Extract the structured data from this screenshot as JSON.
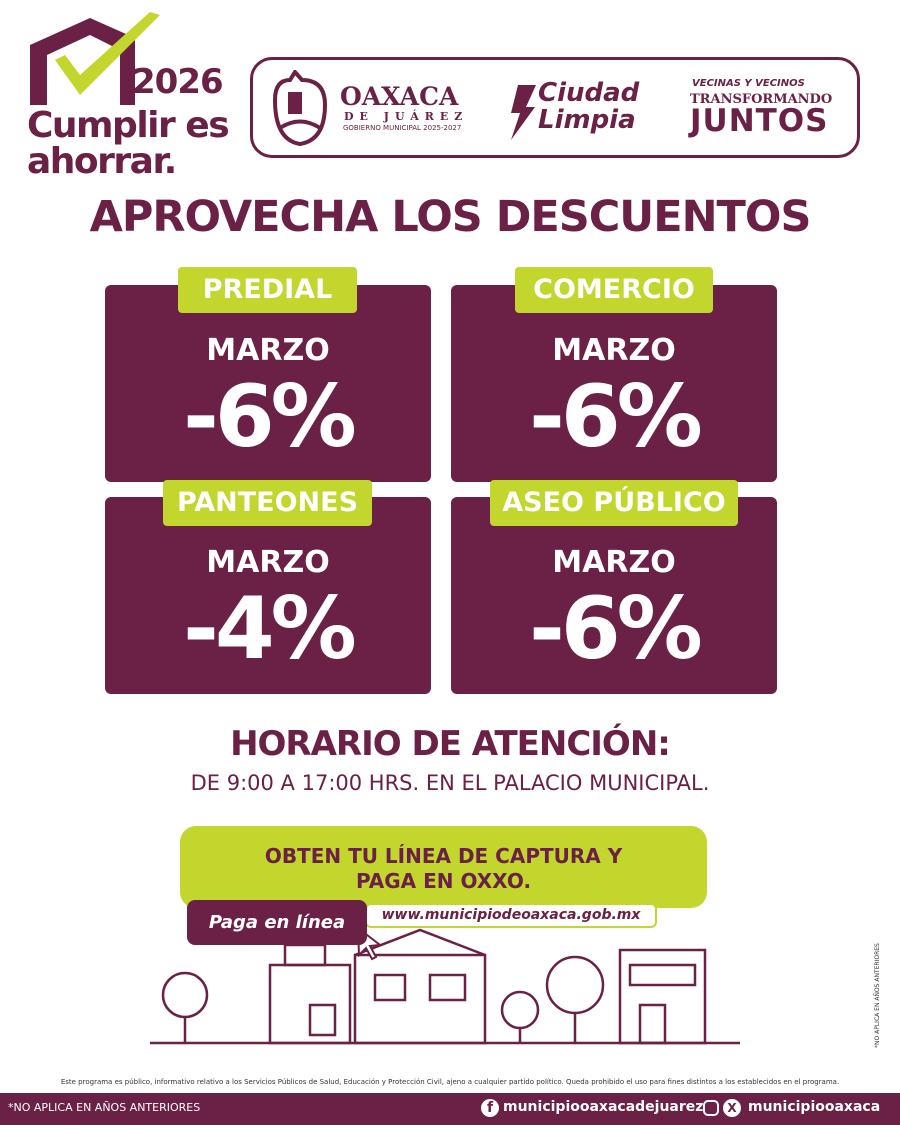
{
  "brand": {
    "year": "2026",
    "slogan_line1": "Cumplir es",
    "slogan_line2": "ahorrar."
  },
  "header_logos": {
    "oaxaca": {
      "name": "OAXACA",
      "sub": "DE JUÁREZ",
      "gov": "GOBIERNO MUNICIPAL 2025-2027"
    },
    "ciudad_limpia": {
      "line1": "Ciudad",
      "line2": "Limpia"
    },
    "juntos": {
      "line1": "VECINAS Y VECINOS",
      "line2": "TRANSFORMANDO",
      "line3": "JUNTOS"
    }
  },
  "title": "APROVECHA LOS DESCUENTOS",
  "discounts": [
    {
      "label": "PREDIAL",
      "month": "MARZO",
      "percent": "-6%"
    },
    {
      "label": "COMERCIO",
      "month": "MARZO",
      "percent": "-6%"
    },
    {
      "label": "PANTEONES",
      "month": "MARZO",
      "percent": "-4%"
    },
    {
      "label": "ASEO PÚBLICO",
      "month": "MARZO",
      "percent": "-6%"
    }
  ],
  "schedule": {
    "title": "HORARIO DE ATENCIÓN:",
    "text": "DE 9:00 A 17:00 HRS. EN EL PALACIO MUNICIPAL."
  },
  "cta": {
    "line1": "OBTEN TU LÍNEA DE CAPTURA Y",
    "line2": "PAGA EN OXXO.",
    "pay_online": "Paga en línea",
    "url": "www.municipiodeoaxaca.gob.mx"
  },
  "disclaimer": "Este programa es público, informativo relativo a los Servicios Públicos de Salud, Educación y Protección Civil, ajeno a cualquier partido político. Queda prohibido el uso para fines distintos a los establecidos en el programa.",
  "side_note": "*NO APLICA EN AÑOS ANTERIORES",
  "footer": {
    "note": "*NO APLICA EN AÑOS ANTERIORES",
    "facebook": "municipiooaxacadejuarez",
    "social": "municipiooaxaca"
  },
  "colors": {
    "maroon": "#6b2045",
    "lime": "#c2d62e"
  }
}
